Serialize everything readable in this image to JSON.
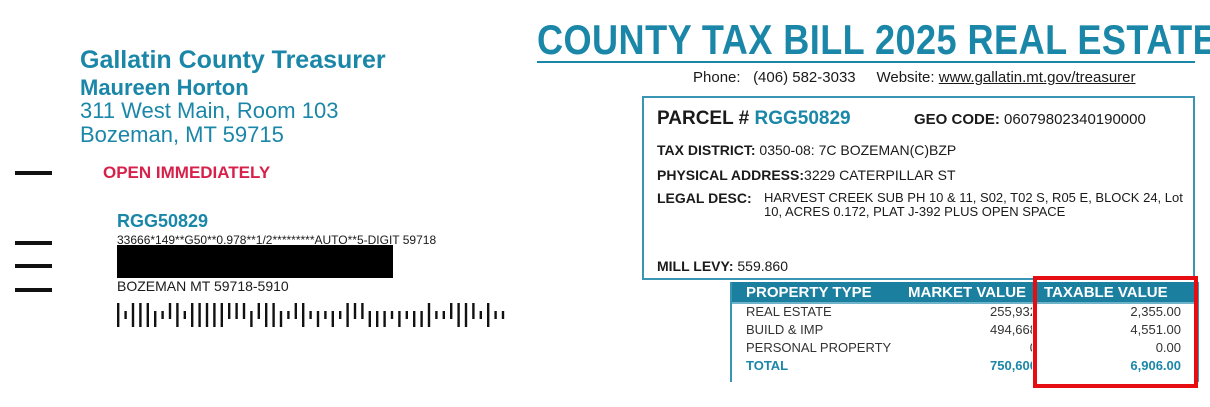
{
  "sender": {
    "office": "Gallatin County Treasurer",
    "name": "Maureen Horton",
    "street": "311 West Main, Room 103",
    "city": "Bozeman, MT 59715"
  },
  "notice": "OPEN IMMEDIATELY",
  "mailing": {
    "parcel": "RGG50829",
    "sort_line": "33666*149**G50**0.978**1/2*********AUTO**5-DIGIT 59718",
    "city_line": "BOZEMAN MT 59718-5910"
  },
  "header": {
    "title": "COUNTY TAX BILL 2025 REAL ESTATE",
    "phone_label": "Phone:",
    "phone": "(406) 582-3033",
    "website_label": "Website:",
    "website": "www.gallatin.mt.gov/treasurer"
  },
  "parcel": {
    "parcel_label": "PARCEL #",
    "parcel_number": "RGG50829",
    "geo_label": "GEO CODE:",
    "geo_code": "06079802340190000",
    "district_label": "TAX DISTRICT:",
    "district": "0350-08: 7C BOZEMAN(C)BZP",
    "address_label": "PHYSICAL ADDRESS:",
    "address": "3229 CATERPILLAR ST",
    "legal_label": "LEGAL DESC:",
    "legal": "HARVEST CREEK SUB PH 10 & 11, S02, T02 S, R05 E, BLOCK 24, Lot 10, ACRES 0.172, PLAT J-392 PLUS OPEN SPACE",
    "levy_label": "MILL LEVY:",
    "levy": "559.860"
  },
  "values_table": {
    "headers": [
      "PROPERTY TYPE",
      "MARKET VALUE",
      "TAXABLE VALUE"
    ],
    "rows": [
      {
        "type": "REAL ESTATE",
        "market": "255,932",
        "taxable": "2,355.00"
      },
      {
        "type": "BUILD & IMP",
        "market": "494,668",
        "taxable": "4,551.00"
      },
      {
        "type": "PERSONAL PROPERTY",
        "market": "0",
        "taxable": "0.00"
      }
    ],
    "total": {
      "type": "TOTAL",
      "market": "750,600",
      "taxable": "6,906.00"
    }
  },
  "colors": {
    "brand_blue": "#1b87a8",
    "notice_red": "#d6224a",
    "highlight_red": "#e50d12"
  }
}
